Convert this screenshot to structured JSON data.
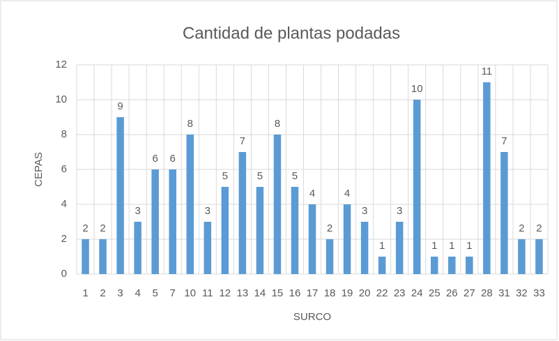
{
  "chart_data": {
    "type": "bar",
    "title": "Cantidad de plantas podadas",
    "x_label": "SURCO",
    "y_label": "CEPAS",
    "categories": [
      "1",
      "2",
      "3",
      "4",
      "5",
      "7",
      "10",
      "11",
      "12",
      "13",
      "14",
      "15",
      "16",
      "17",
      "18",
      "19",
      "20",
      "22",
      "23",
      "24",
      "25",
      "26",
      "27",
      "28",
      "31",
      "32",
      "33"
    ],
    "values": [
      2,
      2,
      9,
      3,
      6,
      6,
      8,
      3,
      5,
      7,
      5,
      8,
      5,
      4,
      2,
      4,
      3,
      1,
      3,
      10,
      1,
      1,
      1,
      11,
      7,
      2,
      2
    ],
    "color": "#5b9bd5",
    "ylim": [
      0,
      12
    ],
    "yticks": [
      0,
      2,
      4,
      6,
      8,
      10,
      12
    ],
    "grid": true,
    "data_labels": true
  }
}
